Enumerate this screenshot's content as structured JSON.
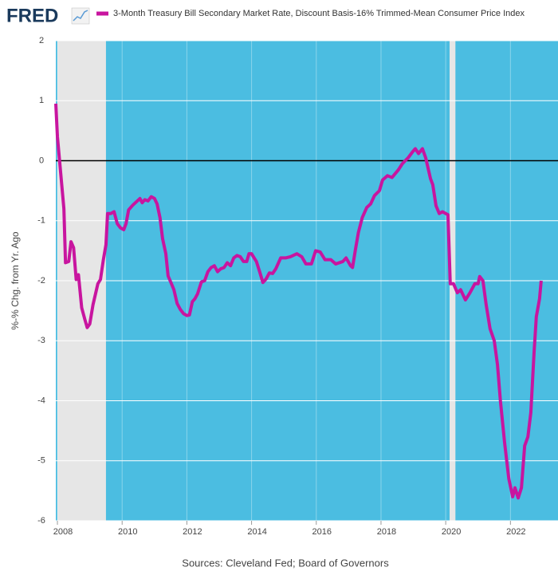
{
  "chart_data": {
    "type": "line",
    "logo": "FRED",
    "ylabel": "%-% Chg. from Yr. Ago",
    "source": "Sources: Cleveland Fed; Board of Governors",
    "background_color": "#4bbde1",
    "recession_color": "#e6e6e6",
    "grid": true,
    "zero_line": true,
    "legend": "top",
    "xlim": [
      2007.95,
      2023.47
    ],
    "xticks": [
      2008,
      2010,
      2012,
      2014,
      2016,
      2018,
      2020,
      2022
    ],
    "ylim": [
      -6,
      2
    ],
    "yticks": [
      -6,
      -5,
      -4,
      -3,
      -2,
      -1,
      0,
      1,
      2
    ],
    "recessions": [
      {
        "start": 2008.0,
        "end": 2009.5
      },
      {
        "start": 2020.12,
        "end": 2020.3
      }
    ],
    "x": [
      2007.95,
      2008.0,
      2008.1,
      2008.2,
      2008.25,
      2008.35,
      2008.42,
      2008.5,
      2008.58,
      2008.65,
      2008.75,
      2008.85,
      2008.92,
      2009.0,
      2009.1,
      2009.25,
      2009.33,
      2009.42,
      2009.5,
      2009.55,
      2009.65,
      2009.75,
      2009.85,
      2009.95,
      2010.05,
      2010.12,
      2010.2,
      2010.33,
      2010.45,
      2010.55,
      2010.62,
      2010.7,
      2010.8,
      2010.9,
      2011.0,
      2011.08,
      2011.17,
      2011.25,
      2011.35,
      2011.42,
      2011.5,
      2011.6,
      2011.7,
      2011.8,
      2011.9,
      2012.0,
      2012.08,
      2012.17,
      2012.25,
      2012.33,
      2012.45,
      2012.55,
      2012.65,
      2012.75,
      2012.85,
      2012.95,
      2013.05,
      2013.15,
      2013.25,
      2013.35,
      2013.45,
      2013.55,
      2013.65,
      2013.75,
      2013.85,
      2013.92,
      2014.0,
      2014.08,
      2014.15,
      2014.25,
      2014.35,
      2014.45,
      2014.55,
      2014.65,
      2014.75,
      2014.9,
      2015.05,
      2015.2,
      2015.4,
      2015.55,
      2015.68,
      2015.85,
      2015.98,
      2016.12,
      2016.27,
      2016.45,
      2016.6,
      2016.82,
      2016.92,
      2017.06,
      2017.12,
      2017.21,
      2017.3,
      2017.42,
      2017.56,
      2017.68,
      2017.8,
      2017.95,
      2018.05,
      2018.2,
      2018.34,
      2018.54,
      2018.66,
      2018.84,
      2018.98,
      2019.06,
      2019.16,
      2019.28,
      2019.38,
      2019.53,
      2019.6,
      2019.7,
      2019.8,
      2019.9,
      2020.0,
      2020.07,
      2020.14,
      2020.24,
      2020.36,
      2020.46,
      2020.61,
      2020.75,
      2020.9,
      2021.0,
      2021.05,
      2021.15,
      2021.25,
      2021.37,
      2021.5,
      2021.6,
      2021.69,
      2021.82,
      2021.95,
      2022.07,
      2022.14,
      2022.24,
      2022.34,
      2022.44,
      2022.54,
      2022.63,
      2022.73,
      2022.8,
      2022.9,
      2022.95
    ],
    "series": [
      {
        "name": "3-Month Treasury Bill Secondary Market Rate, Discount Basis-16% Trimmed-Mean Consumer Price Index",
        "color": "#c8159f",
        "values": [
          0.95,
          0.4,
          -0.2,
          -0.8,
          -1.7,
          -1.68,
          -1.35,
          -1.45,
          -1.98,
          -1.9,
          -2.45,
          -2.65,
          -2.78,
          -2.72,
          -2.4,
          -2.05,
          -1.98,
          -1.65,
          -1.4,
          -0.88,
          -0.88,
          -0.85,
          -1.05,
          -1.12,
          -1.15,
          -1.05,
          -0.82,
          -0.74,
          -0.68,
          -0.63,
          -0.7,
          -0.65,
          -0.67,
          -0.6,
          -0.63,
          -0.72,
          -0.95,
          -1.3,
          -1.55,
          -1.92,
          -2.02,
          -2.15,
          -2.38,
          -2.48,
          -2.55,
          -2.58,
          -2.57,
          -2.35,
          -2.3,
          -2.22,
          -2.02,
          -2.0,
          -1.85,
          -1.78,
          -1.75,
          -1.85,
          -1.8,
          -1.78,
          -1.7,
          -1.75,
          -1.62,
          -1.58,
          -1.6,
          -1.68,
          -1.68,
          -1.55,
          -1.55,
          -1.62,
          -1.68,
          -1.85,
          -2.03,
          -1.97,
          -1.87,
          -1.88,
          -1.8,
          -1.62,
          -1.62,
          -1.6,
          -1.55,
          -1.6,
          -1.72,
          -1.72,
          -1.5,
          -1.52,
          -1.65,
          -1.65,
          -1.72,
          -1.68,
          -1.62,
          -1.75,
          -1.78,
          -1.48,
          -1.2,
          -0.95,
          -0.78,
          -0.72,
          -0.58,
          -0.5,
          -0.32,
          -0.25,
          -0.28,
          -0.15,
          -0.05,
          0.05,
          0.15,
          0.2,
          0.12,
          0.2,
          0.05,
          -0.3,
          -0.4,
          -0.75,
          -0.88,
          -0.85,
          -0.88,
          -0.9,
          -2.05,
          -2.05,
          -2.2,
          -2.15,
          -2.32,
          -2.2,
          -2.05,
          -2.05,
          -1.93,
          -2.0,
          -2.4,
          -2.8,
          -3.0,
          -3.4,
          -4.0,
          -4.7,
          -5.3,
          -5.6,
          -5.45,
          -5.62,
          -5.45,
          -4.75,
          -4.6,
          -4.2,
          -3.2,
          -2.6,
          -2.3,
          -2.0
        ]
      }
    ]
  }
}
